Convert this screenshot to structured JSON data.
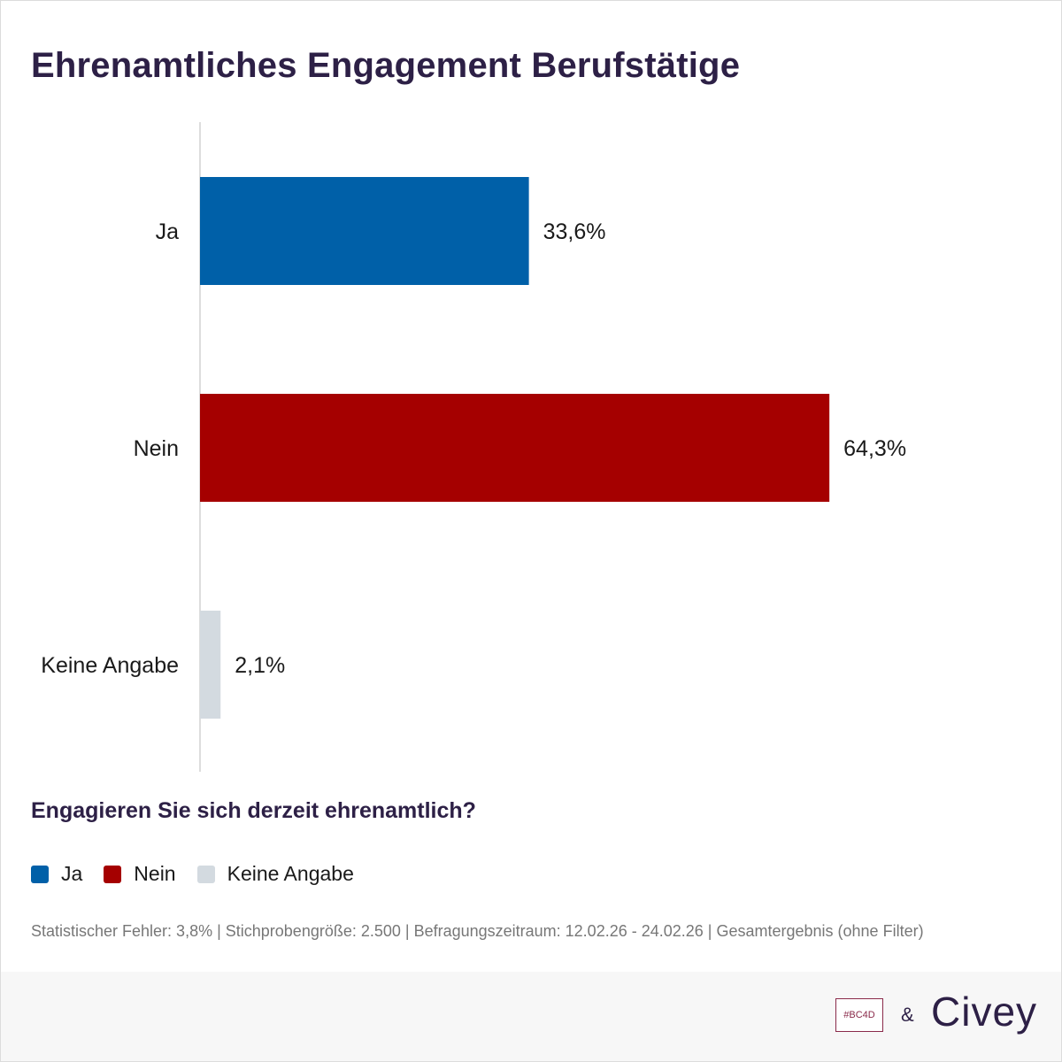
{
  "chart_data": {
    "type": "bar",
    "orientation": "horizontal",
    "title": "Ehrenamtliches Engagement Berufstätige",
    "categories": [
      "Ja",
      "Nein",
      "Keine Angabe"
    ],
    "values": [
      33.6,
      64.3,
      2.1
    ],
    "value_labels": [
      "33,6%",
      "64,3%",
      "2,1%"
    ],
    "colors": [
      "#0060a8",
      "#a50000",
      "#d3dae0"
    ],
    "xlim": [
      0,
      100
    ],
    "xlabel": "",
    "ylabel": "",
    "grid": false,
    "legend_position": "bottom-left"
  },
  "question": "Engagieren Sie sich derzeit ehrenamtlich?",
  "legend": [
    {
      "label": "Ja",
      "color": "#0060a8"
    },
    {
      "label": "Nein",
      "color": "#a50000"
    },
    {
      "label": "Keine Angabe",
      "color": "#d3dae0"
    }
  ],
  "footnote": "Statistischer Fehler: 3,8% | Stichprobengröße: 2.500 | Befragungszeitraum: 12.02.26 - 24.02.26 | Gesamtergebnis (ohne Filter)",
  "footer": {
    "partner_logo": "#BC4D",
    "ampersand": "&",
    "brand": "Civey"
  },
  "colors": {
    "title": "#2d2046",
    "axis": "#dddddd"
  }
}
